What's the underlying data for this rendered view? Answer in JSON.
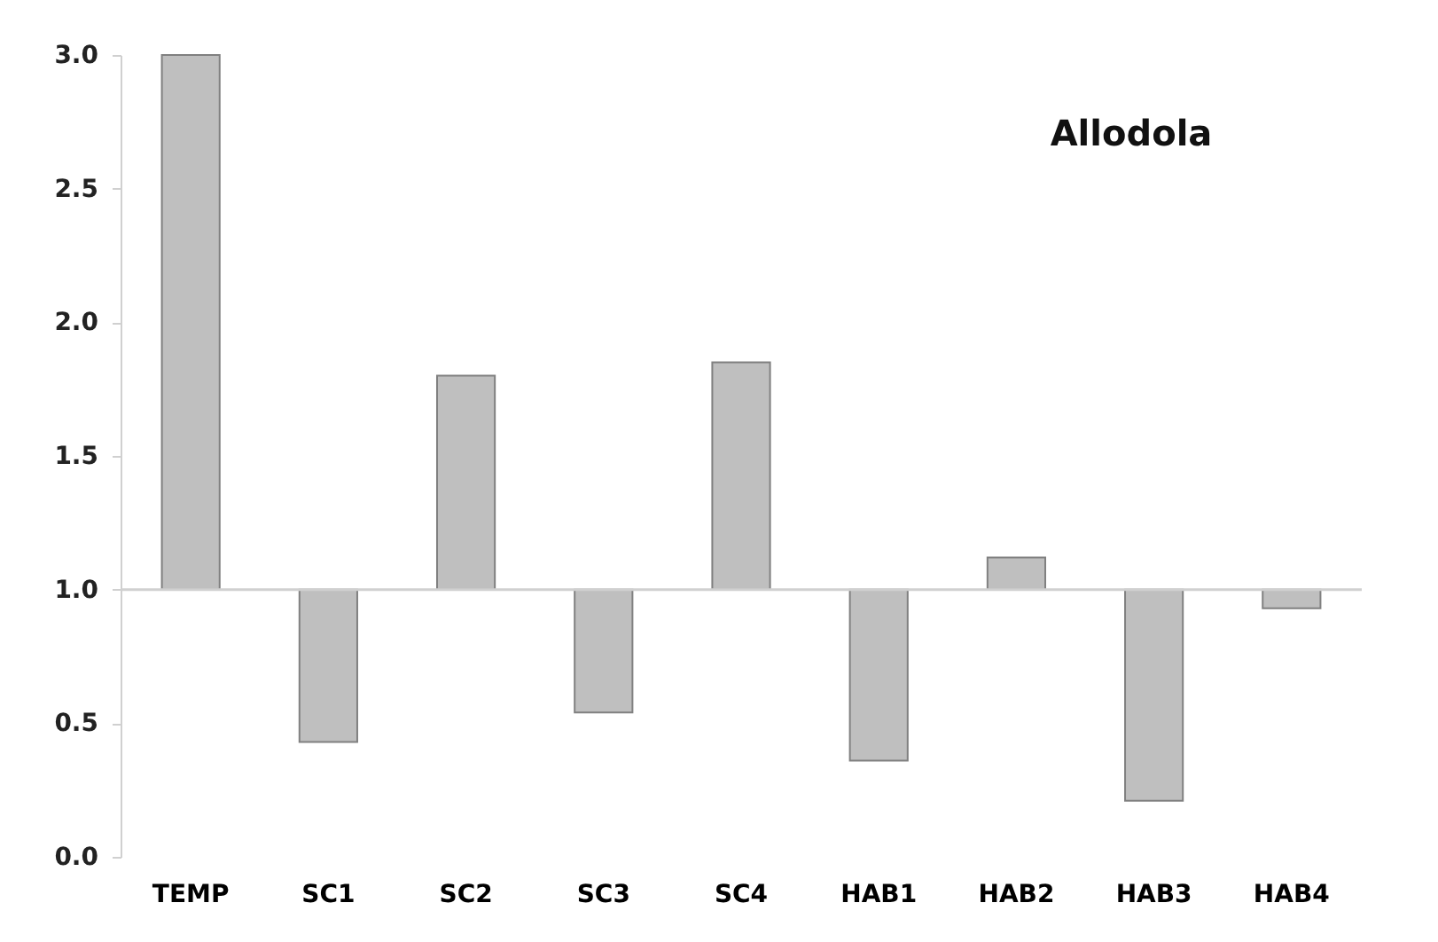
{
  "chart_data": {
    "type": "bar",
    "title": "Allodola",
    "categories": [
      "TEMP",
      "SC1",
      "SC2",
      "SC3",
      "SC4",
      "HAB1",
      "HAB2",
      "HAB3",
      "HAB4"
    ],
    "base": [
      1.0,
      1.0,
      1.0,
      1.0,
      1.0,
      1.0,
      1.0,
      1.0,
      1.0
    ],
    "values": [
      2.0,
      -0.57,
      0.8,
      -0.46,
      0.85,
      -0.64,
      0.12,
      -0.79,
      -0.07
    ],
    "color": "#bfbfbf",
    "ylim": [
      0,
      3.0
    ],
    "yticks": [
      {
        "value": 0,
        "label": "0.0"
      },
      0.5,
      {
        "value": 1,
        "label": "1.0"
      },
      1.5,
      {
        "value": 2,
        "label": "2.0"
      },
      2.5,
      {
        "value": 3,
        "label": "3.0"
      }
    ],
    "ref_lines": [
      {
        "axis": "y",
        "value": 1.0,
        "color": "#d0d0d0"
      }
    ],
    "grid": false
  }
}
